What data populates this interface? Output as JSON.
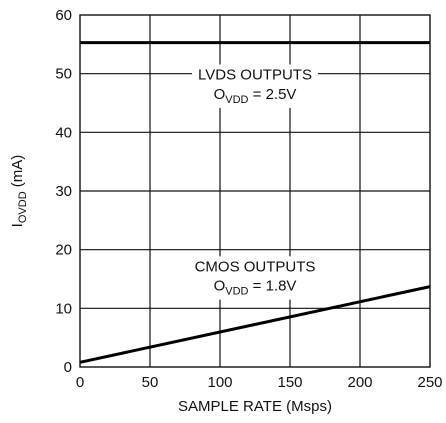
{
  "chart_data": {
    "type": "line",
    "xlabel": "SAMPLE RATE (Msps)",
    "ylabel": {
      "main": "I",
      "sub": "OVDD",
      "rest": " (mA)"
    },
    "xlim": [
      0,
      250
    ],
    "ylim": [
      0,
      60
    ],
    "x_ticks": [
      "0",
      "50",
      "100",
      "150",
      "200",
      "250"
    ],
    "y_ticks": [
      "0",
      "10",
      "20",
      "30",
      "40",
      "50",
      "60"
    ],
    "grid": true,
    "series": [
      {
        "name": "LVDS OUTPUTS",
        "x": [
          0,
          250
        ],
        "y": [
          55.3,
          55.3
        ],
        "label": {
          "line1": "LVDS OUTPUTS",
          "line2_main": "O",
          "line2_sub": "VDD",
          "line2_rest": " = 2.5V"
        }
      },
      {
        "name": "CMOS OUTPUTS",
        "x": [
          0,
          250
        ],
        "y": [
          0.8,
          13.7
        ],
        "label": {
          "line1": "CMOS OUTPUTS",
          "line2_main": "O",
          "line2_sub": "VDD",
          "line2_rest": " = 1.8V"
        }
      }
    ]
  }
}
